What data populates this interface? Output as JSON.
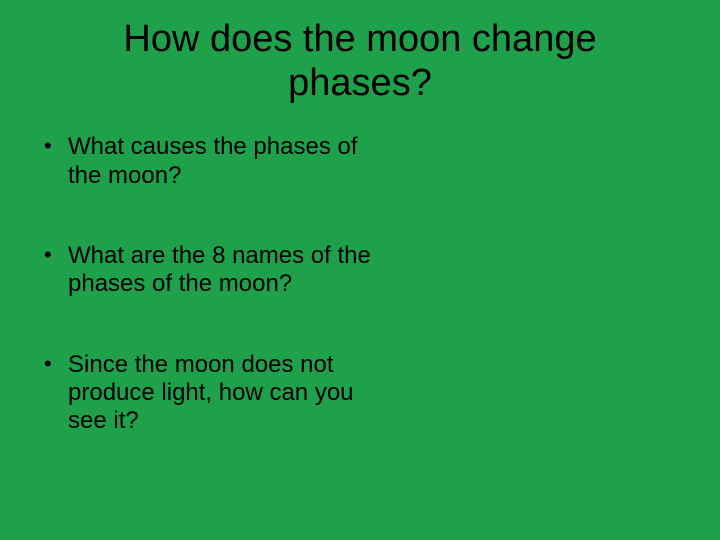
{
  "slide": {
    "background_color": "#1fa04b",
    "text_color": "#000000",
    "title": "How does the moon change phases?",
    "title_fontsize": 38,
    "title_fontweight": "normal",
    "bullet_fontsize": 24,
    "bullets": [
      {
        "text": "What causes the phases of the moon?"
      },
      {
        "text": "What are the 8 names of the phases of the moon?"
      },
      {
        "text": "Since the moon does not produce light, how can you see it?"
      }
    ]
  }
}
